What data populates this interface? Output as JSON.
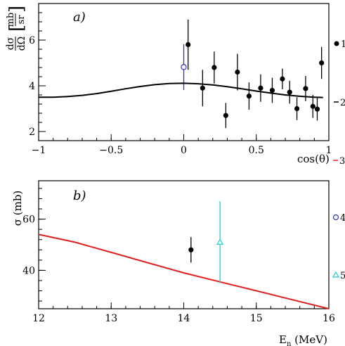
{
  "chart_data": [
    {
      "type": "scatter",
      "panel_label": "a)",
      "ylabel_num": "dσ",
      "ylabel_den": "dΩ",
      "yunit_num": "mb",
      "yunit_den": "sr",
      "xlabel": "cos(θ)",
      "xlim": [
        -1,
        1
      ],
      "ylim": [
        1.6,
        7.6
      ],
      "xticks": [
        {
          "value": -1,
          "label": "−1"
        },
        {
          "value": -0.5,
          "label": "−0.5"
        },
        {
          "value": 0,
          "label": "0"
        },
        {
          "value": 0.5,
          "label": "0.5"
        },
        {
          "value": 1,
          "label": "1"
        }
      ],
      "yticks": [
        {
          "value": 2,
          "label": "2"
        },
        {
          "value": 4,
          "label": "4"
        },
        {
          "value": 6,
          "label": "6"
        }
      ],
      "series": [
        {
          "legend_label": "1",
          "marker": "filled-circle",
          "color": "#000000",
          "points": [
            {
              "x": 0.03,
              "y": 5.8,
              "err": 1.1
            },
            {
              "x": 0.13,
              "y": 3.9,
              "err": 0.8
            },
            {
              "x": 0.21,
              "y": 4.8,
              "err": 0.7
            },
            {
              "x": 0.29,
              "y": 2.7,
              "err": 0.55
            },
            {
              "x": 0.37,
              "y": 4.6,
              "err": 0.8
            },
            {
              "x": 0.45,
              "y": 3.55,
              "err": 0.6
            },
            {
              "x": 0.53,
              "y": 3.9,
              "err": 0.6
            },
            {
              "x": 0.61,
              "y": 3.8,
              "err": 0.55
            },
            {
              "x": 0.68,
              "y": 4.3,
              "err": 0.45
            },
            {
              "x": 0.73,
              "y": 3.72,
              "err": 0.5
            },
            {
              "x": 0.78,
              "y": 3.0,
              "err": 0.5
            },
            {
              "x": 0.84,
              "y": 3.88,
              "err": 0.55
            },
            {
              "x": 0.89,
              "y": 3.1,
              "err": 0.5
            },
            {
              "x": 0.92,
              "y": 2.98,
              "err": 0.5
            },
            {
              "x": 0.95,
              "y": 5.0,
              "err": 0.7
            }
          ]
        },
        {
          "legend_label": "",
          "marker": "open-circle",
          "color": "#3030c0",
          "points": [
            {
              "x": 0.0,
              "y": 4.82,
              "err": 1.0
            }
          ]
        },
        {
          "legend_label": "2",
          "marker": "line",
          "color": "#000000",
          "points": [
            {
              "x": -1.0,
              "y": 3.5
            },
            {
              "x": -0.9,
              "y": 3.5
            },
            {
              "x": -0.8,
              "y": 3.53
            },
            {
              "x": -0.7,
              "y": 3.58
            },
            {
              "x": -0.6,
              "y": 3.66
            },
            {
              "x": -0.5,
              "y": 3.76
            },
            {
              "x": -0.4,
              "y": 3.87
            },
            {
              "x": -0.3,
              "y": 3.97
            },
            {
              "x": -0.2,
              "y": 4.05
            },
            {
              "x": -0.1,
              "y": 4.1
            },
            {
              "x": 0.0,
              "y": 4.11
            },
            {
              "x": 0.1,
              "y": 4.09
            },
            {
              "x": 0.2,
              "y": 4.04
            },
            {
              "x": 0.3,
              "y": 3.96
            },
            {
              "x": 0.4,
              "y": 3.87
            },
            {
              "x": 0.5,
              "y": 3.77
            },
            {
              "x": 0.6,
              "y": 3.68
            },
            {
              "x": 0.7,
              "y": 3.6
            },
            {
              "x": 0.8,
              "y": 3.54
            },
            {
              "x": 0.9,
              "y": 3.5
            },
            {
              "x": 0.96,
              "y": 3.49
            }
          ]
        }
      ]
    },
    {
      "type": "line",
      "panel_label": "b)",
      "ylabel": "σ (mb)",
      "xlabel_main": "E",
      "xlabel_sub": "n",
      "xlabel_unit": " (MeV)",
      "xlim": [
        12,
        16
      ],
      "ylim": [
        25,
        75
      ],
      "xticks": [
        {
          "value": 12,
          "label": "12"
        },
        {
          "value": 13,
          "label": "13"
        },
        {
          "value": 14,
          "label": "14"
        },
        {
          "value": 15,
          "label": "15"
        },
        {
          "value": 16,
          "label": "16"
        }
      ],
      "yticks": [
        {
          "value": 40,
          "label": "40"
        },
        {
          "value": 60,
          "label": "60"
        }
      ],
      "series": [
        {
          "legend_label": "3",
          "marker": "line",
          "color": "#e02020",
          "points": [
            {
              "x": 12.0,
              "y": 54.0
            },
            {
              "x": 12.5,
              "y": 51.0
            },
            {
              "x": 13.0,
              "y": 47.0
            },
            {
              "x": 13.5,
              "y": 43.0
            },
            {
              "x": 14.0,
              "y": 39.0
            },
            {
              "x": 14.5,
              "y": 35.5
            },
            {
              "x": 15.0,
              "y": 32.0
            },
            {
              "x": 15.5,
              "y": 28.5
            },
            {
              "x": 16.0,
              "y": 25.0
            }
          ]
        },
        {
          "legend_label": "",
          "marker": "filled-circle",
          "color": "#000000",
          "points": [
            {
              "x": 14.1,
              "y": 48.0,
              "err": 5.0
            }
          ]
        },
        {
          "legend_label": "4",
          "marker": "open-circle",
          "color": "#3030c0",
          "points": []
        },
        {
          "legend_label": "5",
          "marker": "open-triangle",
          "color": "#20d0d0",
          "points": [
            {
              "x": 14.5,
              "y": 51.0,
              "err": 16.0
            }
          ]
        }
      ]
    }
  ]
}
